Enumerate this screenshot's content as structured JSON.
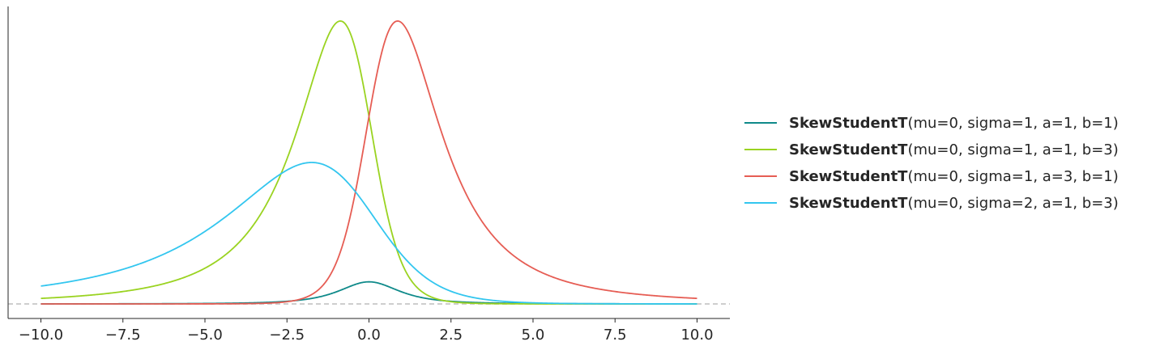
{
  "chart_data": {
    "type": "line",
    "title": "",
    "xlabel": "",
    "ylabel": "",
    "xlim": [
      -11,
      11
    ],
    "x_ticks": [
      "−10.0",
      "−7.5",
      "−5.0",
      "−2.5",
      "0.0",
      "2.5",
      "5.0",
      "7.5",
      "10.0"
    ],
    "x_tick_values": [
      -10,
      -7.5,
      -5,
      -2.5,
      0,
      2.5,
      5,
      7.5,
      10
    ],
    "y_ticks_visible": false,
    "grid": false,
    "baseline": {
      "y": 0,
      "style": "dashed",
      "color": "#c8c8c8"
    },
    "legend_position": "right",
    "series": [
      {
        "name": "SkewStudentT",
        "params": "(mu=0, sigma=1, a=1, b=1)",
        "color": "#0f8a8a",
        "mu": 0,
        "sigma": 1,
        "a": 1,
        "b": 1
      },
      {
        "name": "SkewStudentT",
        "params": "(mu=0, sigma=1, a=1, b=3)",
        "color": "#9ad321",
        "mu": 0,
        "sigma": 1,
        "a": 1,
        "b": 3
      },
      {
        "name": "SkewStudentT",
        "params": "(mu=0, sigma=1, a=3, b=1)",
        "color": "#e65d54",
        "mu": 0,
        "sigma": 1,
        "a": 3,
        "b": 1
      },
      {
        "name": "SkewStudentT",
        "params": "(mu=0, sigma=2, a=1, b=3)",
        "color": "#33c6ef",
        "mu": 0,
        "sigma": 2,
        "a": 1,
        "b": 3
      }
    ]
  }
}
